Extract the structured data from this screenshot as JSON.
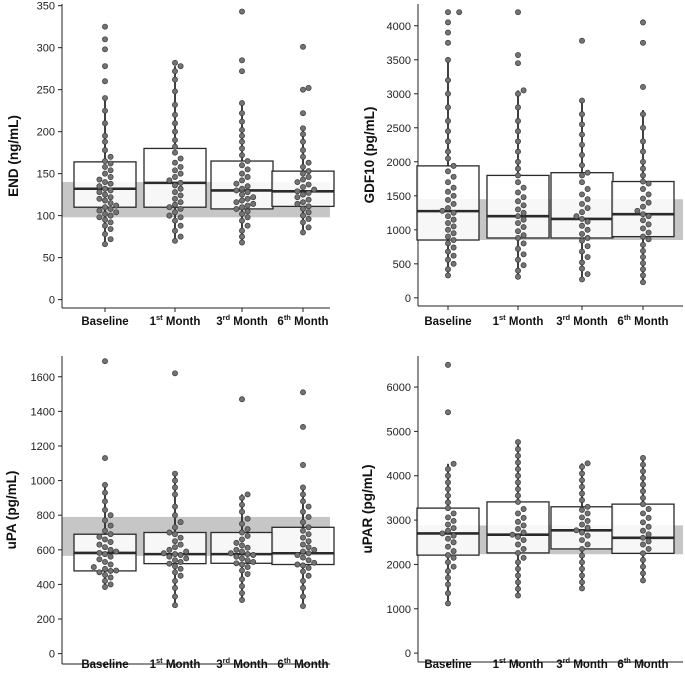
{
  "chart_data": [
    {
      "type": "boxplot",
      "ylabel": "END (ng/mL)",
      "categories": [
        {
          "main": "Baseline",
          "sup": "",
          "suffix": ""
        },
        {
          "main": "1",
          "sup": "st",
          "suffix": " Month"
        },
        {
          "main": "3",
          "sup": "rd",
          "suffix": " Month"
        },
        {
          "main": "6",
          "sup": "th",
          "suffix": " Month"
        }
      ],
      "ylim": [
        -10,
        352
      ],
      "yticks": [
        0,
        50,
        100,
        150,
        200,
        250,
        300,
        350
      ],
      "reference_range": [
        98,
        140
      ],
      "boxes": [
        {
          "q1": 110,
          "median": 132,
          "q3": 164,
          "whisker_low": 66,
          "whisker_high": 242
        },
        {
          "q1": 110,
          "median": 139,
          "q3": 180,
          "whisker_low": 70,
          "whisker_high": 278
        },
        {
          "q1": 108,
          "median": 130,
          "q3": 165,
          "whisker_low": 68,
          "whisker_high": 234
        },
        {
          "q1": 111,
          "median": 129,
          "q3": 153,
          "whisker_low": 80,
          "whisker_high": 204
        }
      ],
      "points": [
        [
          66,
          72,
          78,
          84,
          88,
          92,
          95,
          98,
          100,
          102,
          104,
          106,
          108,
          110,
          112,
          115,
          118,
          120,
          122,
          125,
          128,
          130,
          132,
          135,
          138,
          140,
          143,
          146,
          150,
          154,
          158,
          162,
          165,
          170,
          178,
          188,
          195,
          210,
          225,
          240,
          260,
          278,
          298,
          310,
          325
        ],
        [
          70,
          75,
          82,
          88,
          94,
          98,
          100,
          104,
          108,
          110,
          113,
          116,
          120,
          124,
          128,
          132,
          136,
          139,
          142,
          146,
          150,
          154,
          158,
          163,
          168,
          175,
          182,
          190,
          200,
          210,
          220,
          232,
          248,
          262,
          272,
          278,
          282
        ],
        [
          68,
          75,
          82,
          88,
          94,
          98,
          102,
          105,
          108,
          110,
          112,
          114,
          116,
          118,
          120,
          122,
          125,
          128,
          130,
          132,
          135,
          138,
          142,
          146,
          150,
          155,
          160,
          165,
          172,
          180,
          188,
          195,
          202,
          212,
          222,
          234,
          272,
          285,
          343
        ],
        [
          80,
          86,
          92,
          96,
          100,
          104,
          108,
          111,
          114,
          116,
          119,
          122,
          125,
          127,
          129,
          131,
          134,
          137,
          140,
          143,
          146,
          150,
          153,
          158,
          163,
          170,
          178,
          188,
          197,
          204,
          222,
          250,
          252,
          301
        ]
      ]
    },
    {
      "type": "boxplot",
      "ylabel": "GDF10 (pg/mL)",
      "categories": [
        {
          "main": "Baseline",
          "sup": "",
          "suffix": ""
        },
        {
          "main": "1",
          "sup": "st",
          "suffix": " Month"
        },
        {
          "main": "3",
          "sup": "rd",
          "suffix": " Month"
        },
        {
          "main": "6",
          "sup": "th",
          "suffix": " Month"
        }
      ],
      "ylim": [
        -120,
        4320
      ],
      "yticks": [
        0,
        500,
        1000,
        1500,
        2000,
        2500,
        3000,
        3500,
        4000
      ],
      "reference_range": [
        850,
        1450
      ],
      "boxes": [
        {
          "q1": 850,
          "median": 1275,
          "q3": 1940,
          "whisker_low": 330,
          "whisker_high": 3500
        },
        {
          "q1": 880,
          "median": 1200,
          "q3": 1800,
          "whisker_low": 310,
          "whisker_high": 3050
        },
        {
          "q1": 880,
          "median": 1160,
          "q3": 1840,
          "whisker_low": 270,
          "whisker_high": 2920
        },
        {
          "q1": 900,
          "median": 1230,
          "q3": 1710,
          "whisker_low": 230,
          "whisker_high": 2760
        }
      ],
      "points": [
        [
          330,
          420,
          500,
          560,
          620,
          680,
          740,
          800,
          850,
          900,
          950,
          1000,
          1050,
          1100,
          1150,
          1200,
          1250,
          1280,
          1320,
          1380,
          1440,
          1500,
          1560,
          1620,
          1700,
          1780,
          1860,
          1940,
          2050,
          2150,
          2300,
          2450,
          2600,
          2800,
          3000,
          3200,
          3500,
          3750,
          3900,
          4050,
          4200,
          4200
        ],
        [
          310,
          400,
          480,
          560,
          640,
          720,
          800,
          880,
          920,
          980,
          1040,
          1100,
          1150,
          1200,
          1250,
          1300,
          1360,
          1420,
          1480,
          1550,
          1620,
          1700,
          1800,
          1900,
          2000,
          2150,
          2300,
          2450,
          2600,
          2800,
          3000,
          3050,
          3450,
          3570,
          4200
        ],
        [
          270,
          350,
          430,
          520,
          600,
          680,
          760,
          840,
          880,
          940,
          1000,
          1060,
          1120,
          1160,
          1200,
          1260,
          1320,
          1380,
          1450,
          1520,
          1600,
          1700,
          1800,
          1840,
          1950,
          2100,
          2250,
          2400,
          2550,
          2700,
          2900,
          3780
        ],
        [
          230,
          330,
          420,
          510,
          600,
          690,
          780,
          860,
          900,
          960,
          1020,
          1080,
          1140,
          1200,
          1230,
          1280,
          1340,
          1400,
          1460,
          1520,
          1600,
          1680,
          1710,
          1800,
          1900,
          2000,
          2150,
          2300,
          2500,
          2700,
          3100,
          3750,
          4050
        ]
      ]
    },
    {
      "type": "boxplot",
      "ylabel": "uPA (pg/mL)",
      "categories": [
        {
          "main": "Baseline",
          "sup": "",
          "suffix": ""
        },
        {
          "main": "1",
          "sup": "st",
          "suffix": " Month"
        },
        {
          "main": "3",
          "sup": "rd",
          "suffix": " Month"
        },
        {
          "main": "6",
          "sup": "th",
          "suffix": " Month"
        }
      ],
      "ylim": [
        -60,
        1720
      ],
      "yticks": [
        0,
        200,
        400,
        600,
        800,
        1000,
        1200,
        1400,
        1600
      ],
      "reference_range": [
        565,
        790
      ],
      "boxes": [
        {
          "q1": 478,
          "median": 582,
          "q3": 690,
          "whisker_low": 385,
          "whisker_high": 975
        },
        {
          "q1": 520,
          "median": 575,
          "q3": 700,
          "whisker_low": 280,
          "whisker_high": 1040
        },
        {
          "q1": 522,
          "median": 575,
          "q3": 700,
          "whisker_low": 310,
          "whisker_high": 920
        },
        {
          "q1": 515,
          "median": 580,
          "q3": 730,
          "whisker_low": 275,
          "whisker_high": 960
        }
      ],
      "points": [
        [
          385,
          400,
          420,
          440,
          455,
          470,
          478,
          480,
          490,
          500,
          515,
          530,
          545,
          560,
          575,
          582,
          590,
          600,
          615,
          630,
          645,
          660,
          675,
          690,
          710,
          740,
          770,
          800,
          830,
          880,
          930,
          975,
          1130,
          1690
        ],
        [
          280,
          330,
          380,
          420,
          450,
          470,
          490,
          505,
          520,
          530,
          540,
          550,
          560,
          570,
          575,
          580,
          590,
          600,
          615,
          630,
          650,
          670,
          690,
          700,
          730,
          760,
          800,
          850,
          920,
          960,
          1000,
          1040,
          1620
        ],
        [
          310,
          350,
          390,
          430,
          460,
          480,
          500,
          515,
          522,
          530,
          540,
          550,
          560,
          570,
          575,
          580,
          590,
          600,
          612,
          625,
          640,
          660,
          680,
          700,
          720,
          750,
          780,
          820,
          860,
          900,
          920,
          1470
        ],
        [
          275,
          330,
          380,
          420,
          450,
          475,
          495,
          510,
          515,
          525,
          540,
          555,
          570,
          580,
          590,
          600,
          615,
          630,
          650,
          670,
          690,
          710,
          730,
          760,
          790,
          820,
          850,
          880,
          920,
          960,
          1090,
          1310,
          1510
        ]
      ]
    },
    {
      "type": "boxplot",
      "ylabel": "uPAR (pg/mL)",
      "categories": [
        {
          "main": "Baseline",
          "sup": "",
          "suffix": ""
        },
        {
          "main": "1",
          "sup": "st",
          "suffix": " Month"
        },
        {
          "main": "3",
          "sup": "rd",
          "suffix": " Month"
        },
        {
          "main": "6",
          "sup": "th",
          "suffix": " Month"
        }
      ],
      "ylim": [
        -200,
        6700
      ],
      "yticks": [
        0,
        1000,
        2000,
        3000,
        4000,
        5000,
        6000
      ],
      "reference_range": [
        2230,
        2880
      ],
      "boxes": [
        {
          "q1": 2210,
          "median": 2700,
          "q3": 3270,
          "whisker_low": 1120,
          "whisker_high": 4270
        },
        {
          "q1": 2260,
          "median": 2670,
          "q3": 3410,
          "whisker_low": 1300,
          "whisker_high": 4760
        },
        {
          "q1": 2350,
          "median": 2770,
          "q3": 3300,
          "whisker_low": 1460,
          "whisker_high": 4280
        },
        {
          "q1": 2250,
          "median": 2600,
          "q3": 3360,
          "whisker_low": 1640,
          "whisker_high": 4400
        }
      ],
      "points": [
        [
          1120,
          1350,
          1550,
          1700,
          1850,
          1950,
          2050,
          2150,
          2210,
          2300,
          2400,
          2500,
          2580,
          2650,
          2700,
          2760,
          2820,
          2900,
          2980,
          3060,
          3150,
          3270,
          3400,
          3550,
          3700,
          3850,
          4000,
          4150,
          4270,
          5430,
          6500
        ],
        [
          1300,
          1450,
          1600,
          1750,
          1900,
          2050,
          2150,
          2260,
          2350,
          2450,
          2550,
          2620,
          2670,
          2720,
          2800,
          2880,
          2960,
          3050,
          3150,
          3250,
          3410,
          3550,
          3700,
          3850,
          4000,
          4150,
          4300,
          4450,
          4600,
          4760
        ],
        [
          1460,
          1600,
          1750,
          1900,
          2050,
          2200,
          2350,
          2450,
          2550,
          2650,
          2720,
          2770,
          2830,
          2900,
          2980,
          3060,
          3150,
          3230,
          3300,
          3450,
          3600,
          3750,
          3900,
          4050,
          4200,
          4280
        ],
        [
          1640,
          1800,
          1950,
          2100,
          2250,
          2350,
          2450,
          2520,
          2600,
          2680,
          2760,
          2850,
          2950,
          3050,
          3150,
          3250,
          3360,
          3500,
          3650,
          3800,
          3950,
          4100,
          4250,
          4400
        ]
      ]
    }
  ],
  "colors": {
    "reference_band": "#c6c6c6",
    "box_fill": "#ffffff",
    "box_stroke": "#2a2a2a",
    "point_fill": "#737373",
    "point_stroke": "#3a3a3a",
    "axis": "#222222"
  }
}
